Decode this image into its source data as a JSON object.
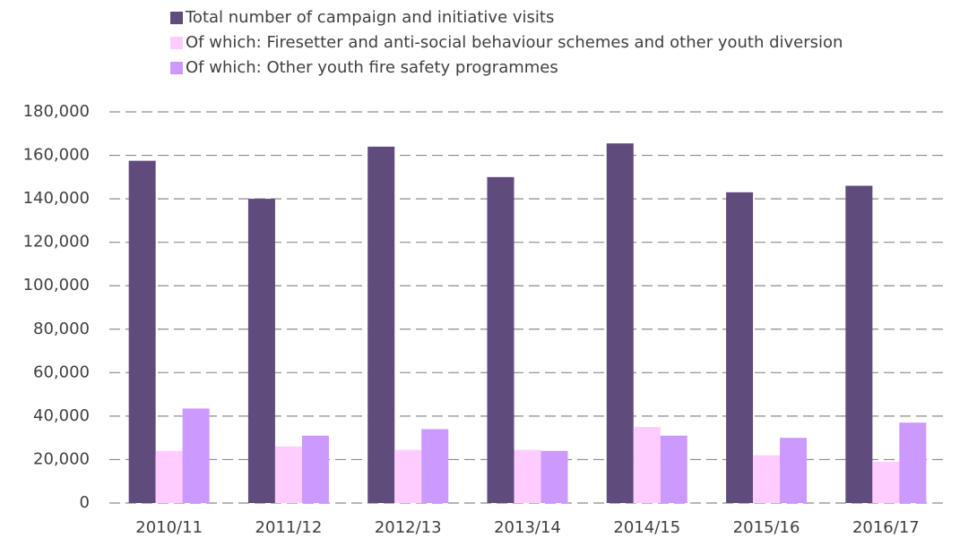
{
  "chart_data": {
    "type": "bar",
    "categories": [
      "2010/11",
      "2011/12",
      "2012/13",
      "2013/14",
      "2014/15",
      "2015/16",
      "2016/17"
    ],
    "series": [
      {
        "name": "Total number of campaign and initiative visits",
        "color": "#5f4b7c",
        "values": [
          157500,
          140000,
          164000,
          150000,
          165500,
          143000,
          146000
        ]
      },
      {
        "name": "Of which: Firesetter and anti-social behaviour schemes and other youth diversion",
        "color": "#ffccff",
        "values": [
          24000,
          26000,
          24500,
          24500,
          35000,
          22000,
          19000
        ]
      },
      {
        "name": "Of which: Other youth fire safety programmes",
        "color": "#cc99ff",
        "values": [
          43500,
          31000,
          34000,
          24000,
          31000,
          30000,
          37000
        ]
      }
    ],
    "ylim": [
      0,
      180000
    ],
    "yticks": [
      0,
      {
        "value": 20000,
        "label": "20,000"
      },
      {
        "value": 40000,
        "label": "40,000"
      },
      {
        "value": 60000,
        "label": "60,000"
      },
      {
        "value": 80000,
        "label": "80,000"
      },
      {
        "value": 100000,
        "label": "100,000"
      },
      {
        "value": 120000,
        "label": "120,000"
      },
      {
        "value": 140000,
        "label": "140,000"
      },
      {
        "value": 160000,
        "label": "160,000"
      },
      {
        "value": 180000,
        "label": "180,000"
      }
    ],
    "grid": true,
    "legend": "top"
  }
}
